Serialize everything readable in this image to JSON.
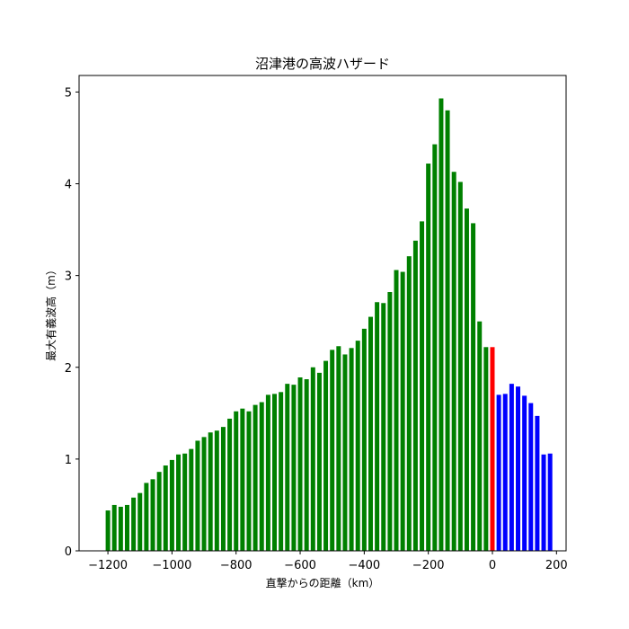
{
  "chart_data": {
    "type": "bar",
    "title": "沼津港の高波ハザード",
    "xlabel": "直撃からの距離（km）",
    "ylabel": "最大有義波高（m）",
    "xlim": [
      -1290,
      230
    ],
    "ylim": [
      0,
      5.18
    ],
    "xticks": [
      -1200,
      -1000,
      -800,
      -600,
      -400,
      -200,
      0,
      200
    ],
    "xtick_labels": [
      "−1200",
      "−1000",
      "−800",
      "−600",
      "−400",
      "−200",
      "0",
      "200"
    ],
    "yticks": [
      0,
      1,
      2,
      3,
      4,
      5
    ],
    "ytick_labels": [
      "0",
      "1",
      "2",
      "3",
      "4",
      "5"
    ],
    "bar_width_km": 14,
    "colors": {
      "before": "#008000",
      "landfall": "#ff0000",
      "after": "#0000ff"
    },
    "x": [
      -1200,
      -1180,
      -1160,
      -1140,
      -1120,
      -1100,
      -1080,
      -1060,
      -1040,
      -1020,
      -1000,
      -980,
      -960,
      -940,
      -920,
      -900,
      -880,
      -860,
      -840,
      -820,
      -800,
      -780,
      -760,
      -740,
      -720,
      -700,
      -680,
      -660,
      -640,
      -620,
      -600,
      -580,
      -560,
      -540,
      -520,
      -500,
      -480,
      -460,
      -440,
      -420,
      -400,
      -380,
      -360,
      -340,
      -320,
      -300,
      -280,
      -260,
      -240,
      -220,
      -200,
      -180,
      -160,
      -140,
      -120,
      -100,
      -80,
      -60,
      -40,
      -20,
      0,
      20,
      40,
      60,
      80,
      100,
      120,
      140,
      160,
      180
    ],
    "values": [
      0.44,
      0.5,
      0.48,
      0.5,
      0.58,
      0.63,
      0.74,
      0.78,
      0.86,
      0.93,
      0.99,
      1.05,
      1.06,
      1.11,
      1.2,
      1.24,
      1.29,
      1.31,
      1.35,
      1.44,
      1.52,
      1.55,
      1.52,
      1.59,
      1.62,
      1.7,
      1.71,
      1.73,
      1.82,
      1.81,
      1.89,
      1.87,
      2.0,
      1.94,
      2.07,
      2.19,
      2.23,
      2.14,
      2.21,
      2.29,
      2.42,
      2.55,
      2.71,
      2.7,
      2.82,
      3.06,
      3.04,
      3.21,
      3.38,
      3.59,
      4.22,
      4.43,
      4.93,
      4.8,
      4.13,
      4.02,
      3.73,
      3.57,
      2.5,
      2.22,
      2.22,
      1.7,
      1.71,
      1.82,
      1.79,
      1.69,
      1.61,
      1.47,
      1.05,
      1.06
    ],
    "categories_by_color": {
      "before": [
        -1200,
        -20
      ],
      "landfall": [
        0,
        0
      ],
      "after": [
        20,
        180
      ]
    }
  }
}
